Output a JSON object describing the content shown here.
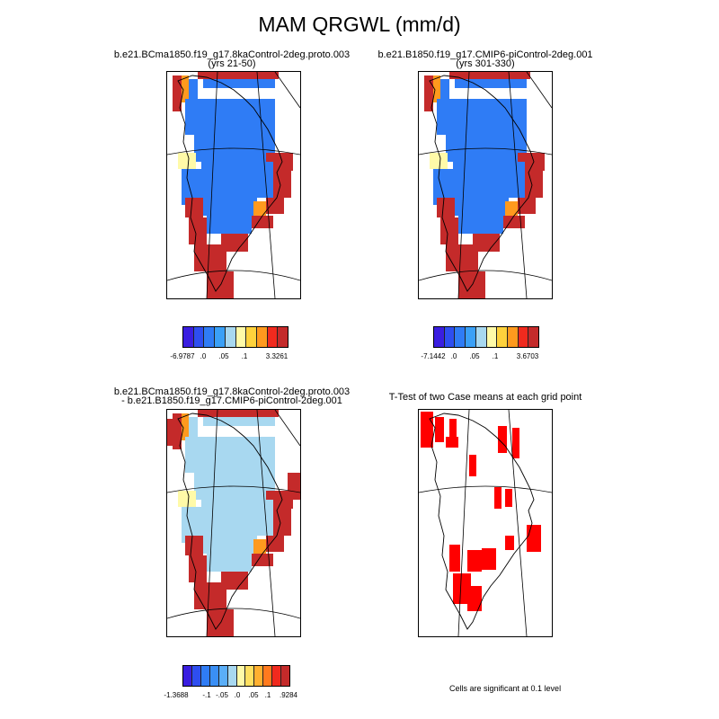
{
  "title": "MAM QRGWL (mm/d)",
  "panels": {
    "case1": {
      "title": "b.e21.BCma1850.f19_g17.8kaControl-2deg.proto.003",
      "subtitle": "(yrs 21-50)"
    },
    "case2": {
      "title": "b.e21.B1850.f19_g17.CMIP6-piControl-2deg.001",
      "subtitle": "(yrs 301-330)"
    },
    "diff": {
      "title": "b.e21.BCma1850.f19_g17.8kaControl-2deg.proto.003",
      "subtitle": "- b.e21.B1850.f19_g17.CMIP6-piControl-2deg.001"
    },
    "ttest": {
      "title": "T-Test of two Case means at each grid point",
      "note": "Cells are significant at 0.1 level"
    }
  },
  "colorbars": {
    "case1": {
      "colors": [
        "#3a1ee0",
        "#2e4ef0",
        "#2f7cf5",
        "#3aa0f7",
        "#a8d8f0",
        "#fffaa8",
        "#ffd23c",
        "#ff9a1e",
        "#f02a1e",
        "#c42a2a"
      ],
      "labels": [
        "-6.9787",
        ".0",
        ".05",
        ".1",
        "3.3261"
      ]
    },
    "case2": {
      "colors": [
        "#3a1ee0",
        "#2e4ef0",
        "#2f7cf5",
        "#3aa0f7",
        "#a8d8f0",
        "#fffaa8",
        "#ffd23c",
        "#ff9a1e",
        "#f02a1e",
        "#c42a2a"
      ],
      "labels": [
        "-7.1442",
        ".0",
        ".05",
        ".1",
        "3.6703"
      ]
    },
    "diff": {
      "colors": [
        "#3a1ee0",
        "#2e4ef0",
        "#2f7cf5",
        "#3a8ff5",
        "#5aaef7",
        "#a8d8f0",
        "#fffaa8",
        "#ffe060",
        "#ffb030",
        "#ff7a1e",
        "#f02a1e",
        "#c42a2a"
      ],
      "labels": [
        "-1.3688",
        "-.1",
        "-.05",
        ".0",
        ".05",
        ".1",
        ".9284"
      ]
    }
  },
  "colors": {
    "significant": "#ff0000",
    "coast": "#000000"
  }
}
